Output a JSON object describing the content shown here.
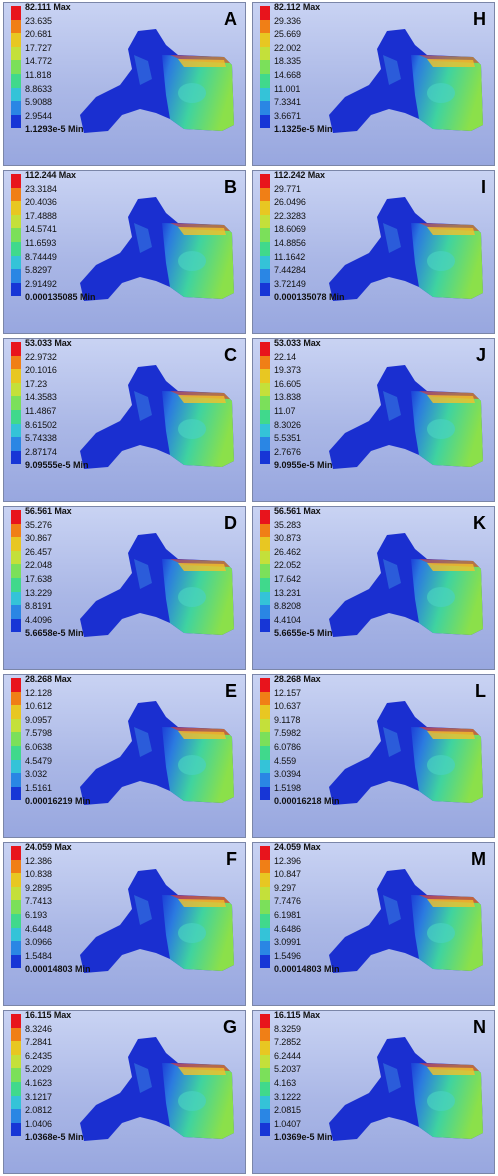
{
  "legend_colors": [
    "#e8141c",
    "#f07f16",
    "#e8c722",
    "#c4e03a",
    "#7be05a",
    "#40d98c",
    "#34c3d8",
    "#2a86e4",
    "#1736d6"
  ],
  "panels": [
    {
      "letter": "A",
      "labels": [
        "82.111 Max",
        "23.635",
        "20.681",
        "17.727",
        "14.772",
        "11.818",
        "8.8633",
        "5.9088",
        "2.9544",
        "1.1293e-5 Min"
      ],
      "level": 0.45
    },
    {
      "letter": "H",
      "labels": [
        "82.112 Max",
        "29.336",
        "25.669",
        "22.002",
        "18.335",
        "14.668",
        "11.001",
        "7.3341",
        "3.6671",
        "1.1325e-5 Min"
      ],
      "level": 0.4
    },
    {
      "letter": "B",
      "labels": [
        "112.244 Max",
        "23.3184",
        "20.4036",
        "17.4888",
        "14.5741",
        "11.6593",
        "8.74449",
        "5.8297",
        "2.91492",
        "0.000135085 Min"
      ],
      "level": 0.5
    },
    {
      "letter": "I",
      "labels": [
        "112.242 Max",
        "29.771",
        "26.0496",
        "22.3283",
        "18.6069",
        "14.8856",
        "11.1642",
        "7.44284",
        "3.72149",
        "0.000135078 Min"
      ],
      "level": 0.45
    },
    {
      "letter": "C",
      "labels": [
        "53.033 Max",
        "22.9732",
        "20.1016",
        "17.23",
        "14.3583",
        "11.4867",
        "8.61502",
        "5.74338",
        "2.87174",
        "9.09555e-5 Min"
      ],
      "level": 0.55
    },
    {
      "letter": "J",
      "labels": [
        "53.033 Max",
        "22.14",
        "19.373",
        "16.605",
        "13.838",
        "11.07",
        "8.3026",
        "5.5351",
        "2.7676",
        "9.0955e-5 Min"
      ],
      "level": 0.55
    },
    {
      "letter": "D",
      "labels": [
        "56.561 Max",
        "35.276",
        "30.867",
        "26.457",
        "22.048",
        "17.638",
        "13.229",
        "8.8191",
        "4.4096",
        "5.6658e-5 Min"
      ],
      "level": 0.5
    },
    {
      "letter": "K",
      "labels": [
        "56.561 Max",
        "35.283",
        "30.873",
        "26.462",
        "22.052",
        "17.642",
        "13.231",
        "8.8208",
        "4.4104",
        "5.6655e-5 Min"
      ],
      "level": 0.5
    },
    {
      "letter": "E",
      "labels": [
        "28.268 Max",
        "12.128",
        "10.612",
        "9.0957",
        "7.5798",
        "6.0638",
        "4.5479",
        "3.032",
        "1.5161",
        "0.00016219 Min"
      ],
      "level": 0.7
    },
    {
      "letter": "L",
      "labels": [
        "28.268 Max",
        "12.157",
        "10.637",
        "9.1178",
        "7.5982",
        "6.0786",
        "4.559",
        "3.0394",
        "1.5198",
        "0.00016218 Min"
      ],
      "level": 0.7
    },
    {
      "letter": "F",
      "labels": [
        "24.059 Max",
        "12.386",
        "10.838",
        "9.2895",
        "7.7413",
        "6.193",
        "4.6448",
        "3.0966",
        "1.5484",
        "0.00014803 Min"
      ],
      "level": 0.75
    },
    {
      "letter": "M",
      "labels": [
        "24.059 Max",
        "12.396",
        "10.847",
        "9.297",
        "7.7476",
        "6.1981",
        "4.6486",
        "3.0991",
        "1.5496",
        "0.00014803 Min"
      ],
      "level": 0.75
    },
    {
      "letter": "G",
      "labels": [
        "16.115 Max",
        "8.3246",
        "7.2841",
        "6.2435",
        "5.2029",
        "4.1623",
        "3.1217",
        "2.0812",
        "1.0406",
        "1.0368e-5 Min"
      ],
      "level": 0.65
    },
    {
      "letter": "N",
      "labels": [
        "16.115 Max",
        "8.3259",
        "7.2852",
        "6.2444",
        "5.2037",
        "4.163",
        "3.1222",
        "2.0815",
        "1.0407",
        "1.0369e-5 Min"
      ],
      "level": 0.65
    }
  ]
}
